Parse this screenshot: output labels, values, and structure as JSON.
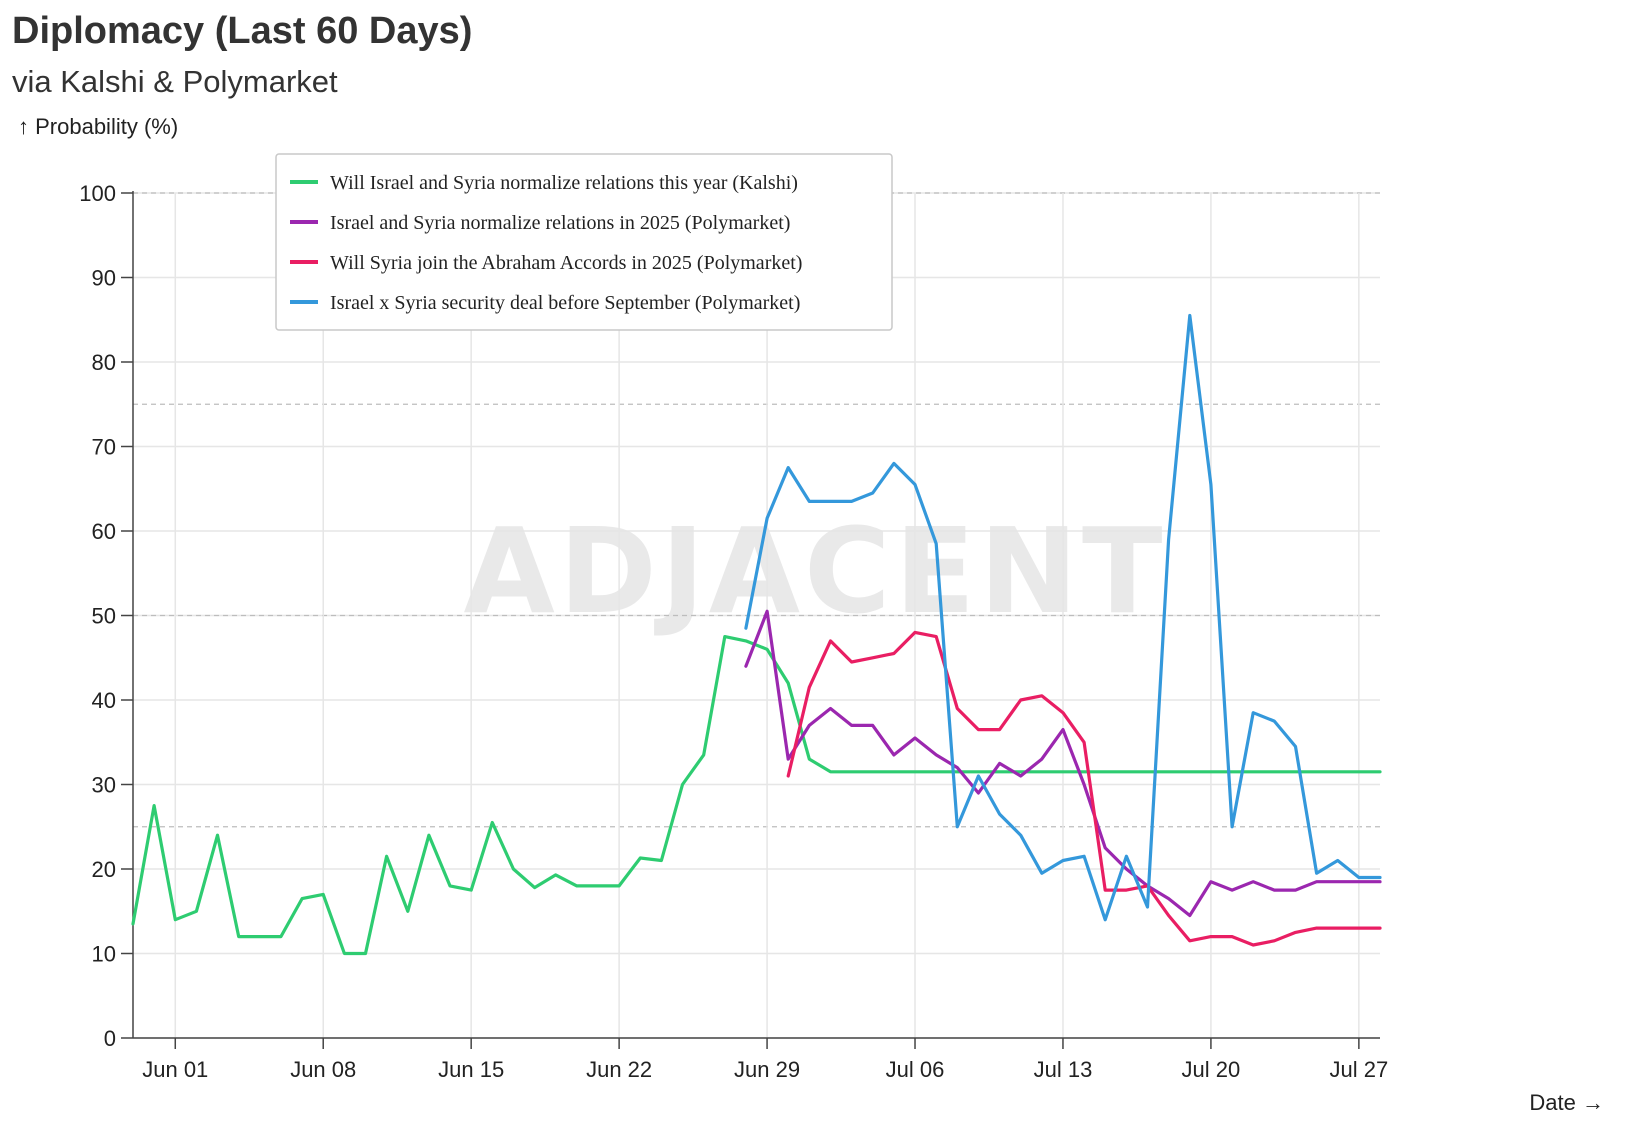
{
  "title": "Diplomacy (Last 60 Days)",
  "subtitle": "via Kalshi & Polymarket",
  "watermark": "ADJACENT",
  "chart_data": {
    "type": "line",
    "title": "Diplomacy (Last 60 Days)",
    "subtitle": "via Kalshi & Polymarket",
    "xlabel": "Date →",
    "ylabel": "↑ Probability (%)",
    "ylim": [
      0,
      100
    ],
    "xlim": [
      "2025-05-30",
      "2025-07-28"
    ],
    "yticks": [
      0,
      10,
      20,
      30,
      40,
      50,
      60,
      70,
      80,
      90,
      100
    ],
    "xticks": [
      "2025-06-01",
      "2025-06-08",
      "2025-06-15",
      "2025-06-22",
      "2025-06-29",
      "2025-07-06",
      "2025-07-13",
      "2025-07-20",
      "2025-07-27"
    ],
    "xtick_labels": [
      "Jun 01",
      "Jun 08",
      "Jun 15",
      "Jun 22",
      "Jun 29",
      "Jul 06",
      "Jul 13",
      "Jul 20",
      "Jul 27"
    ],
    "grid": true,
    "legend_position": "top-left",
    "series": [
      {
        "name": "Will Israel and Syria normalize relations this year (Kalshi)",
        "color": "#2ecc71",
        "x": [
          "2025-05-30",
          "2025-05-31",
          "2025-06-01",
          "2025-06-02",
          "2025-06-03",
          "2025-06-04",
          "2025-06-05",
          "2025-06-06",
          "2025-06-07",
          "2025-06-08",
          "2025-06-09",
          "2025-06-10",
          "2025-06-11",
          "2025-06-12",
          "2025-06-13",
          "2025-06-14",
          "2025-06-15",
          "2025-06-16",
          "2025-06-17",
          "2025-06-18",
          "2025-06-19",
          "2025-06-20",
          "2025-06-21",
          "2025-06-22",
          "2025-06-23",
          "2025-06-24",
          "2025-06-25",
          "2025-06-26",
          "2025-06-27",
          "2025-06-28",
          "2025-06-29",
          "2025-06-30",
          "2025-07-01",
          "2025-07-02",
          "2025-07-28"
        ],
        "y": [
          13.5,
          27.5,
          14,
          15,
          24,
          12,
          12,
          12,
          16.5,
          17,
          10,
          10,
          21.5,
          15,
          24,
          18,
          17.5,
          25.5,
          20,
          17.8,
          19.3,
          18,
          18,
          18,
          21.3,
          21,
          30,
          33.5,
          47.5,
          47,
          46,
          42,
          33,
          31.5,
          31.5
        ]
      },
      {
        "name": "Israel and Syria normalize relations in 2025 (Polymarket)",
        "color": "#9b27af",
        "x": [
          "2025-06-28",
          "2025-06-29",
          "2025-06-30",
          "2025-07-01",
          "2025-07-02",
          "2025-07-03",
          "2025-07-04",
          "2025-07-05",
          "2025-07-06",
          "2025-07-07",
          "2025-07-08",
          "2025-07-09",
          "2025-07-10",
          "2025-07-11",
          "2025-07-12",
          "2025-07-13",
          "2025-07-14",
          "2025-07-15",
          "2025-07-16",
          "2025-07-17",
          "2025-07-18",
          "2025-07-19",
          "2025-07-20",
          "2025-07-21",
          "2025-07-22",
          "2025-07-23",
          "2025-07-24",
          "2025-07-25",
          "2025-07-26",
          "2025-07-27",
          "2025-07-28"
        ],
        "y": [
          44,
          50.5,
          33,
          37,
          39,
          37,
          37,
          33.5,
          35.5,
          33.5,
          32,
          29,
          32.5,
          31,
          33,
          36.5,
          30,
          22.5,
          20,
          18,
          16.5,
          14.5,
          18.5,
          17.5,
          18.5,
          17.5,
          17.5,
          18.5,
          18.5,
          18.5,
          18.5
        ]
      },
      {
        "name": "Will Syria join the Abraham Accords in 2025 (Polymarket)",
        "color": "#e91e63",
        "x": [
          "2025-06-30",
          "2025-07-01",
          "2025-07-02",
          "2025-07-03",
          "2025-07-04",
          "2025-07-05",
          "2025-07-06",
          "2025-07-07",
          "2025-07-08",
          "2025-07-09",
          "2025-07-10",
          "2025-07-11",
          "2025-07-12",
          "2025-07-13",
          "2025-07-14",
          "2025-07-15",
          "2025-07-16",
          "2025-07-17",
          "2025-07-18",
          "2025-07-19",
          "2025-07-20",
          "2025-07-21",
          "2025-07-22",
          "2025-07-23",
          "2025-07-24",
          "2025-07-25",
          "2025-07-26",
          "2025-07-27",
          "2025-07-28"
        ],
        "y": [
          31,
          41.5,
          47,
          44.5,
          45,
          45.5,
          48,
          47.5,
          39,
          36.5,
          36.5,
          40,
          40.5,
          38.5,
          35,
          17.5,
          17.5,
          18,
          14.5,
          11.5,
          12,
          12,
          11,
          11.5,
          12.5,
          13,
          13,
          13,
          13
        ]
      },
      {
        "name": "Israel x Syria security deal before September (Polymarket)",
        "color": "#3498db",
        "x": [
          "2025-06-28",
          "2025-06-29",
          "2025-06-30",
          "2025-07-01",
          "2025-07-02",
          "2025-07-03",
          "2025-07-04",
          "2025-07-05",
          "2025-07-06",
          "2025-07-07",
          "2025-07-08",
          "2025-07-09",
          "2025-07-10",
          "2025-07-11",
          "2025-07-12",
          "2025-07-13",
          "2025-07-14",
          "2025-07-15",
          "2025-07-16",
          "2025-07-17",
          "2025-07-18",
          "2025-07-19",
          "2025-07-20",
          "2025-07-21",
          "2025-07-22",
          "2025-07-23",
          "2025-07-24",
          "2025-07-25",
          "2025-07-26",
          "2025-07-27",
          "2025-07-28"
        ],
        "y": [
          48.5,
          61.5,
          67.5,
          63.5,
          63.5,
          63.5,
          64.5,
          68,
          65.5,
          58.5,
          25,
          31,
          26.5,
          24,
          19.5,
          21,
          21.5,
          14,
          21.5,
          15.5,
          59,
          85.5,
          65.5,
          25,
          38.5,
          37.5,
          34.5,
          19.5,
          21,
          19,
          19
        ]
      }
    ]
  }
}
